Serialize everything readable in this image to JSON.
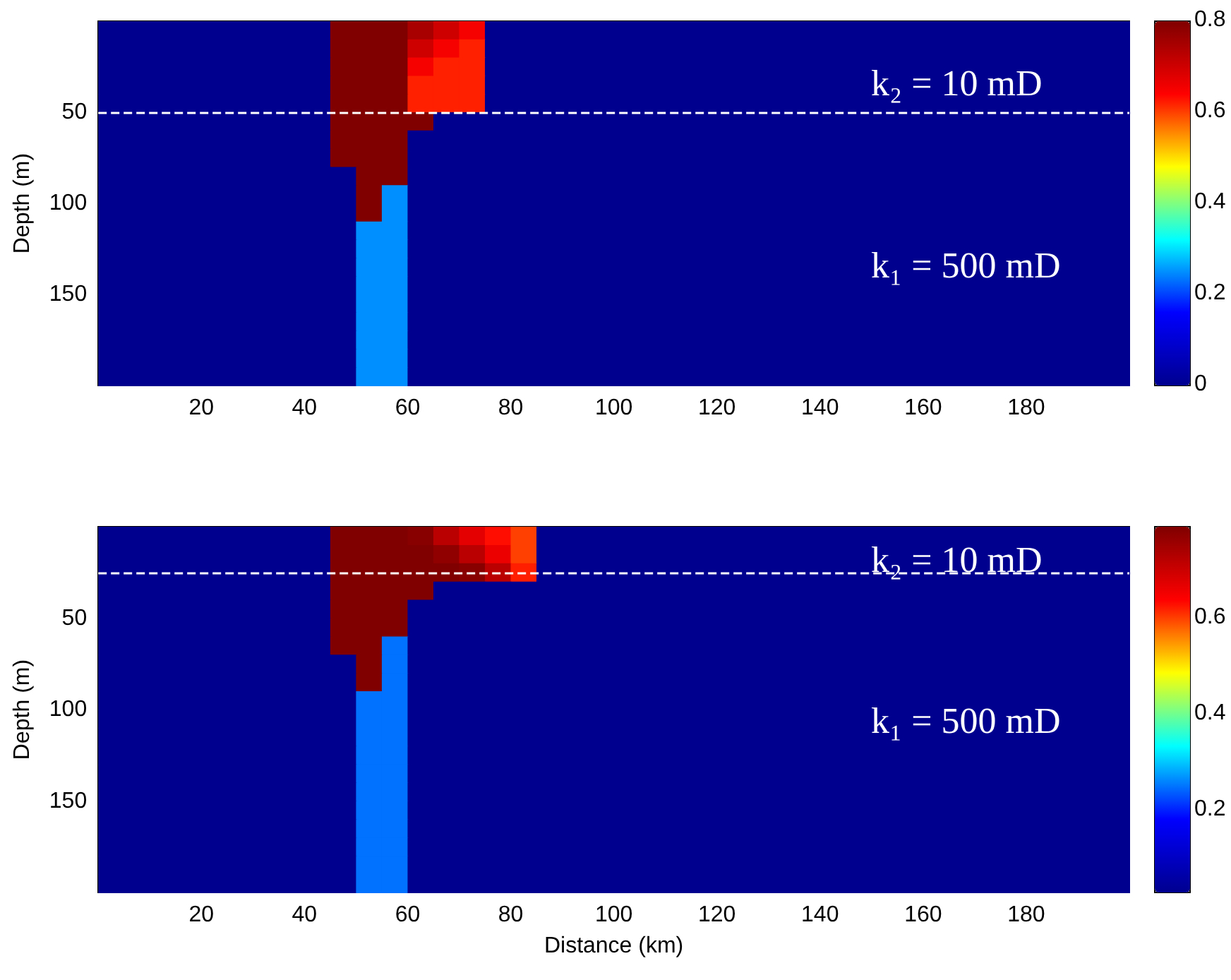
{
  "chart_data": [
    {
      "type": "heatmap",
      "ylabel": "Depth (m)",
      "x": [
        2.5,
        7.5,
        12.5,
        17.5,
        22.5,
        27.5,
        32.5,
        37.5,
        42.5,
        47.5,
        52.5,
        57.5,
        62.5,
        67.5,
        72.5,
        77.5,
        82.5,
        87.5,
        92.5,
        97.5,
        102.5,
        107.5,
        112.5,
        117.5,
        122.5,
        127.5,
        132.5,
        137.5,
        142.5,
        147.5,
        152.5,
        157.5,
        162.5,
        167.5,
        172.5,
        177.5,
        182.5,
        187.5,
        192.5,
        197.5
      ],
      "y": [
        5,
        15,
        25,
        35,
        45,
        55,
        65,
        75,
        85,
        95,
        105,
        115,
        125,
        135,
        145,
        155,
        165,
        175,
        185,
        195
      ],
      "cells": [
        [
          0,
          0,
          0,
          0,
          0,
          0,
          0,
          0,
          0,
          0.8,
          0.8,
          0.8,
          0.75,
          0.7,
          0.65,
          0,
          0,
          0,
          0,
          0,
          0,
          0,
          0,
          0,
          0,
          0,
          0,
          0,
          0,
          0,
          0,
          0,
          0,
          0,
          0,
          0,
          0,
          0,
          0,
          0
        ],
        [
          0,
          0,
          0,
          0,
          0,
          0,
          0,
          0,
          0,
          0.8,
          0.8,
          0.8,
          0.7,
          0.65,
          0.62,
          0,
          0,
          0,
          0,
          0,
          0,
          0,
          0,
          0,
          0,
          0,
          0,
          0,
          0,
          0,
          0,
          0,
          0,
          0,
          0,
          0,
          0,
          0,
          0,
          0
        ],
        [
          0,
          0,
          0,
          0,
          0,
          0,
          0,
          0,
          0,
          0.8,
          0.8,
          0.8,
          0.65,
          0.62,
          0.62,
          0,
          0,
          0,
          0,
          0,
          0,
          0,
          0,
          0,
          0,
          0,
          0,
          0,
          0,
          0,
          0,
          0,
          0,
          0,
          0,
          0,
          0,
          0,
          0,
          0
        ],
        [
          0,
          0,
          0,
          0,
          0,
          0,
          0,
          0,
          0,
          0.8,
          0.8,
          0.8,
          0.62,
          0.62,
          0.62,
          0,
          0,
          0,
          0,
          0,
          0,
          0,
          0,
          0,
          0,
          0,
          0,
          0,
          0,
          0,
          0,
          0,
          0,
          0,
          0,
          0,
          0,
          0,
          0,
          0
        ],
        [
          0,
          0,
          0,
          0,
          0,
          0,
          0,
          0,
          0,
          0.8,
          0.8,
          0.8,
          0.62,
          0.62,
          0.62,
          0,
          0,
          0,
          0,
          0,
          0,
          0,
          0,
          0,
          0,
          0,
          0,
          0,
          0,
          0,
          0,
          0,
          0,
          0,
          0,
          0,
          0,
          0,
          0,
          0
        ],
        [
          0,
          0,
          0,
          0,
          0,
          0,
          0,
          0,
          0,
          0.8,
          0.8,
          0.8,
          0.8,
          0,
          0,
          0,
          0,
          0,
          0,
          0,
          0,
          0,
          0,
          0,
          0,
          0,
          0,
          0,
          0,
          0,
          0,
          0,
          0,
          0,
          0,
          0,
          0,
          0,
          0,
          0
        ],
        [
          0,
          0,
          0,
          0,
          0,
          0,
          0,
          0,
          0,
          0.8,
          0.8,
          0.8,
          0,
          0,
          0,
          0,
          0,
          0,
          0,
          0,
          0,
          0,
          0,
          0,
          0,
          0,
          0,
          0,
          0,
          0,
          0,
          0,
          0,
          0,
          0,
          0,
          0,
          0,
          0,
          0
        ],
        [
          0,
          0,
          0,
          0,
          0,
          0,
          0,
          0,
          0,
          0.8,
          0.8,
          0.8,
          0,
          0,
          0,
          0,
          0,
          0,
          0,
          0,
          0,
          0,
          0,
          0,
          0,
          0,
          0,
          0,
          0,
          0,
          0,
          0,
          0,
          0,
          0,
          0,
          0,
          0,
          0,
          0
        ],
        [
          0,
          0,
          0,
          0,
          0,
          0,
          0,
          0,
          0,
          0,
          0.8,
          0.8,
          0,
          0,
          0,
          0,
          0,
          0,
          0,
          0,
          0,
          0,
          0,
          0,
          0,
          0,
          0,
          0,
          0,
          0,
          0,
          0,
          0,
          0,
          0,
          0,
          0,
          0,
          0,
          0
        ],
        [
          0,
          0,
          0,
          0,
          0,
          0,
          0,
          0,
          0,
          0,
          0.8,
          0.25,
          0,
          0,
          0,
          0,
          0,
          0,
          0,
          0,
          0,
          0,
          0,
          0,
          0,
          0,
          0,
          0,
          0,
          0,
          0,
          0,
          0,
          0,
          0,
          0,
          0,
          0,
          0,
          0
        ],
        [
          0,
          0,
          0,
          0,
          0,
          0,
          0,
          0,
          0,
          0,
          0.8,
          0.25,
          0,
          0,
          0,
          0,
          0,
          0,
          0,
          0,
          0,
          0,
          0,
          0,
          0,
          0,
          0,
          0,
          0,
          0,
          0,
          0,
          0,
          0,
          0,
          0,
          0,
          0,
          0,
          0
        ],
        [
          0,
          0,
          0,
          0,
          0,
          0,
          0,
          0,
          0,
          0,
          0.25,
          0.25,
          0,
          0,
          0,
          0,
          0,
          0,
          0,
          0,
          0,
          0,
          0,
          0,
          0,
          0,
          0,
          0,
          0,
          0,
          0,
          0,
          0,
          0,
          0,
          0,
          0,
          0,
          0,
          0
        ],
        [
          0,
          0,
          0,
          0,
          0,
          0,
          0,
          0,
          0,
          0,
          0.25,
          0.25,
          0,
          0,
          0,
          0,
          0,
          0,
          0,
          0,
          0,
          0,
          0,
          0,
          0,
          0,
          0,
          0,
          0,
          0,
          0,
          0,
          0,
          0,
          0,
          0,
          0,
          0,
          0,
          0
        ],
        [
          0,
          0,
          0,
          0,
          0,
          0,
          0,
          0,
          0,
          0,
          0.25,
          0.25,
          0,
          0,
          0,
          0,
          0,
          0,
          0,
          0,
          0,
          0,
          0,
          0,
          0,
          0,
          0,
          0,
          0,
          0,
          0,
          0,
          0,
          0,
          0,
          0,
          0,
          0,
          0,
          0
        ],
        [
          0,
          0,
          0,
          0,
          0,
          0,
          0,
          0,
          0,
          0,
          0.25,
          0.25,
          0,
          0,
          0,
          0,
          0,
          0,
          0,
          0,
          0,
          0,
          0,
          0,
          0,
          0,
          0,
          0,
          0,
          0,
          0,
          0,
          0,
          0,
          0,
          0,
          0,
          0,
          0,
          0
        ],
        [
          0,
          0,
          0,
          0,
          0,
          0,
          0,
          0,
          0,
          0,
          0.25,
          0.25,
          0,
          0,
          0,
          0,
          0,
          0,
          0,
          0,
          0,
          0,
          0,
          0,
          0,
          0,
          0,
          0,
          0,
          0,
          0,
          0,
          0,
          0,
          0,
          0,
          0,
          0,
          0,
          0
        ],
        [
          0,
          0,
          0,
          0,
          0,
          0,
          0,
          0,
          0,
          0,
          0.25,
          0.25,
          0,
          0,
          0,
          0,
          0,
          0,
          0,
          0,
          0,
          0,
          0,
          0,
          0,
          0,
          0,
          0,
          0,
          0,
          0,
          0,
          0,
          0,
          0,
          0,
          0,
          0,
          0,
          0
        ],
        [
          0,
          0,
          0,
          0,
          0,
          0,
          0,
          0,
          0,
          0,
          0.25,
          0.25,
          0,
          0,
          0,
          0,
          0,
          0,
          0,
          0,
          0,
          0,
          0,
          0,
          0,
          0,
          0,
          0,
          0,
          0,
          0,
          0,
          0,
          0,
          0,
          0,
          0,
          0,
          0,
          0
        ],
        [
          0,
          0,
          0,
          0,
          0,
          0,
          0,
          0,
          0,
          0,
          0.25,
          0.25,
          0,
          0,
          0,
          0,
          0,
          0,
          0,
          0,
          0,
          0,
          0,
          0,
          0,
          0,
          0,
          0,
          0,
          0,
          0,
          0,
          0,
          0,
          0,
          0,
          0,
          0,
          0,
          0
        ],
        [
          0,
          0,
          0,
          0,
          0,
          0,
          0,
          0,
          0,
          0,
          0.25,
          0.25,
          0,
          0,
          0,
          0,
          0,
          0,
          0,
          0,
          0,
          0,
          0,
          0,
          0,
          0,
          0,
          0,
          0,
          0,
          0,
          0,
          0,
          0,
          0,
          0,
          0,
          0,
          0,
          0
        ]
      ],
      "xlim": [
        0,
        200
      ],
      "xticks": [
        20,
        40,
        60,
        80,
        100,
        120,
        140,
        160,
        180
      ],
      "ylim": [
        200,
        0
      ],
      "yticks": [
        50,
        100,
        150
      ],
      "clim": [
        0,
        0.8
      ],
      "cticks": [
        0,
        0.2,
        0.4,
        0.6,
        0.8
      ],
      "ref_lines": [
        {
          "axis": "y",
          "value": 50,
          "color": "#ffffff",
          "line_style": "dashed"
        }
      ],
      "annotations": [
        "k₂ = 10 mD",
        "k₁ = 500 mD"
      ]
    },
    {
      "type": "heatmap",
      "xlabel": "Distance (km)",
      "ylabel": "Depth (m)",
      "x": [
        2.5,
        7.5,
        12.5,
        17.5,
        22.5,
        27.5,
        32.5,
        37.5,
        42.5,
        47.5,
        52.5,
        57.5,
        62.5,
        67.5,
        72.5,
        77.5,
        82.5,
        87.5,
        92.5,
        97.5,
        102.5,
        107.5,
        112.5,
        117.5,
        122.5,
        127.5,
        132.5,
        137.5,
        142.5,
        147.5,
        152.5,
        157.5,
        162.5,
        167.5,
        172.5,
        177.5,
        182.5,
        187.5,
        192.5,
        197.5
      ],
      "y": [
        5,
        15,
        25,
        35,
        45,
        55,
        65,
        75,
        85,
        95,
        105,
        115,
        125,
        135,
        145,
        155,
        165,
        175,
        185,
        195
      ],
      "cells": [
        [
          0.03,
          0.03,
          0.03,
          0.03,
          0.03,
          0.03,
          0.03,
          0.03,
          0.03,
          0.79,
          0.79,
          0.79,
          0.78,
          0.72,
          0.67,
          0.63,
          0.6,
          0.03,
          0.03,
          0.03,
          0.03,
          0.03,
          0.03,
          0.03,
          0.03,
          0.03,
          0.03,
          0.03,
          0.03,
          0.03,
          0.03,
          0.03,
          0.03,
          0.03,
          0.03,
          0.03,
          0.03,
          0.03,
          0.03,
          0.03
        ],
        [
          0.03,
          0.03,
          0.03,
          0.03,
          0.03,
          0.03,
          0.03,
          0.03,
          0.03,
          0.79,
          0.79,
          0.79,
          0.79,
          0.77,
          0.72,
          0.66,
          0.6,
          0.03,
          0.03,
          0.03,
          0.03,
          0.03,
          0.03,
          0.03,
          0.03,
          0.03,
          0.03,
          0.03,
          0.03,
          0.03,
          0.03,
          0.03,
          0.03,
          0.03,
          0.03,
          0.03,
          0.03,
          0.03,
          0.03,
          0.03
        ],
        [
          0.03,
          0.03,
          0.03,
          0.03,
          0.03,
          0.03,
          0.03,
          0.03,
          0.03,
          0.79,
          0.79,
          0.79,
          0.79,
          0.79,
          0.78,
          0.72,
          0.62,
          0.03,
          0.03,
          0.03,
          0.03,
          0.03,
          0.03,
          0.03,
          0.03,
          0.03,
          0.03,
          0.03,
          0.03,
          0.03,
          0.03,
          0.03,
          0.03,
          0.03,
          0.03,
          0.03,
          0.03,
          0.03,
          0.03,
          0.03
        ],
        [
          0.03,
          0.03,
          0.03,
          0.03,
          0.03,
          0.03,
          0.03,
          0.03,
          0.03,
          0.79,
          0.79,
          0.79,
          0.79,
          0.03,
          0.03,
          0.03,
          0.03,
          0.03,
          0.03,
          0.03,
          0.03,
          0.03,
          0.03,
          0.03,
          0.03,
          0.03,
          0.03,
          0.03,
          0.03,
          0.03,
          0.03,
          0.03,
          0.03,
          0.03,
          0.03,
          0.03,
          0.03,
          0.03,
          0.03,
          0.03
        ],
        [
          0.03,
          0.03,
          0.03,
          0.03,
          0.03,
          0.03,
          0.03,
          0.03,
          0.03,
          0.79,
          0.79,
          0.79,
          0.03,
          0.03,
          0.03,
          0.03,
          0.03,
          0.03,
          0.03,
          0.03,
          0.03,
          0.03,
          0.03,
          0.03,
          0.03,
          0.03,
          0.03,
          0.03,
          0.03,
          0.03,
          0.03,
          0.03,
          0.03,
          0.03,
          0.03,
          0.03,
          0.03,
          0.03,
          0.03,
          0.03
        ],
        [
          0.03,
          0.03,
          0.03,
          0.03,
          0.03,
          0.03,
          0.03,
          0.03,
          0.03,
          0.79,
          0.79,
          0.79,
          0.03,
          0.03,
          0.03,
          0.03,
          0.03,
          0.03,
          0.03,
          0.03,
          0.03,
          0.03,
          0.03,
          0.03,
          0.03,
          0.03,
          0.03,
          0.03,
          0.03,
          0.03,
          0.03,
          0.03,
          0.03,
          0.03,
          0.03,
          0.03,
          0.03,
          0.03,
          0.03,
          0.03
        ],
        [
          0.03,
          0.03,
          0.03,
          0.03,
          0.03,
          0.03,
          0.03,
          0.03,
          0.03,
          0.79,
          0.79,
          0.25,
          0.03,
          0.03,
          0.03,
          0.03,
          0.03,
          0.03,
          0.03,
          0.03,
          0.03,
          0.03,
          0.03,
          0.03,
          0.03,
          0.03,
          0.03,
          0.03,
          0.03,
          0.03,
          0.03,
          0.03,
          0.03,
          0.03,
          0.03,
          0.03,
          0.03,
          0.03,
          0.03,
          0.03
        ],
        [
          0.03,
          0.03,
          0.03,
          0.03,
          0.03,
          0.03,
          0.03,
          0.03,
          0.03,
          0.03,
          0.79,
          0.25,
          0.03,
          0.03,
          0.03,
          0.03,
          0.03,
          0.03,
          0.03,
          0.03,
          0.03,
          0.03,
          0.03,
          0.03,
          0.03,
          0.03,
          0.03,
          0.03,
          0.03,
          0.03,
          0.03,
          0.03,
          0.03,
          0.03,
          0.03,
          0.03,
          0.03,
          0.03,
          0.03,
          0.03
        ],
        [
          0.03,
          0.03,
          0.03,
          0.03,
          0.03,
          0.03,
          0.03,
          0.03,
          0.03,
          0.03,
          0.79,
          0.25,
          0.03,
          0.03,
          0.03,
          0.03,
          0.03,
          0.03,
          0.03,
          0.03,
          0.03,
          0.03,
          0.03,
          0.03,
          0.03,
          0.03,
          0.03,
          0.03,
          0.03,
          0.03,
          0.03,
          0.03,
          0.03,
          0.03,
          0.03,
          0.03,
          0.03,
          0.03,
          0.03,
          0.03
        ],
        [
          0.03,
          0.03,
          0.03,
          0.03,
          0.03,
          0.03,
          0.03,
          0.03,
          0.03,
          0.03,
          0.25,
          0.25,
          0.03,
          0.03,
          0.03,
          0.03,
          0.03,
          0.03,
          0.03,
          0.03,
          0.03,
          0.03,
          0.03,
          0.03,
          0.03,
          0.03,
          0.03,
          0.03,
          0.03,
          0.03,
          0.03,
          0.03,
          0.03,
          0.03,
          0.03,
          0.03,
          0.03,
          0.03,
          0.03,
          0.03
        ],
        [
          0.03,
          0.03,
          0.03,
          0.03,
          0.03,
          0.03,
          0.03,
          0.03,
          0.03,
          0.03,
          0.25,
          0.25,
          0.03,
          0.03,
          0.03,
          0.03,
          0.03,
          0.03,
          0.03,
          0.03,
          0.03,
          0.03,
          0.03,
          0.03,
          0.03,
          0.03,
          0.03,
          0.03,
          0.03,
          0.03,
          0.03,
          0.03,
          0.03,
          0.03,
          0.03,
          0.03,
          0.03,
          0.03,
          0.03,
          0.03
        ],
        [
          0.03,
          0.03,
          0.03,
          0.03,
          0.03,
          0.03,
          0.03,
          0.03,
          0.03,
          0.03,
          0.25,
          0.25,
          0.03,
          0.03,
          0.03,
          0.03,
          0.03,
          0.03,
          0.03,
          0.03,
          0.03,
          0.03,
          0.03,
          0.03,
          0.03,
          0.03,
          0.03,
          0.03,
          0.03,
          0.03,
          0.03,
          0.03,
          0.03,
          0.03,
          0.03,
          0.03,
          0.03,
          0.03,
          0.03,
          0.03
        ],
        [
          0.03,
          0.03,
          0.03,
          0.03,
          0.03,
          0.03,
          0.03,
          0.03,
          0.03,
          0.03,
          0.25,
          0.25,
          0.03,
          0.03,
          0.03,
          0.03,
          0.03,
          0.03,
          0.03,
          0.03,
          0.03,
          0.03,
          0.03,
          0.03,
          0.03,
          0.03,
          0.03,
          0.03,
          0.03,
          0.03,
          0.03,
          0.03,
          0.03,
          0.03,
          0.03,
          0.03,
          0.03,
          0.03,
          0.03,
          0.03
        ],
        [
          0.03,
          0.03,
          0.03,
          0.03,
          0.03,
          0.03,
          0.03,
          0.03,
          0.03,
          0.03,
          0.25,
          0.25,
          0.03,
          0.03,
          0.03,
          0.03,
          0.03,
          0.03,
          0.03,
          0.03,
          0.03,
          0.03,
          0.03,
          0.03,
          0.03,
          0.03,
          0.03,
          0.03,
          0.03,
          0.03,
          0.03,
          0.03,
          0.03,
          0.03,
          0.03,
          0.03,
          0.03,
          0.03,
          0.03,
          0.03
        ],
        [
          0.03,
          0.03,
          0.03,
          0.03,
          0.03,
          0.03,
          0.03,
          0.03,
          0.03,
          0.03,
          0.25,
          0.25,
          0.03,
          0.03,
          0.03,
          0.03,
          0.03,
          0.03,
          0.03,
          0.03,
          0.03,
          0.03,
          0.03,
          0.03,
          0.03,
          0.03,
          0.03,
          0.03,
          0.03,
          0.03,
          0.03,
          0.03,
          0.03,
          0.03,
          0.03,
          0.03,
          0.03,
          0.03,
          0.03,
          0.03
        ],
        [
          0.03,
          0.03,
          0.03,
          0.03,
          0.03,
          0.03,
          0.03,
          0.03,
          0.03,
          0.03,
          0.25,
          0.25,
          0.03,
          0.03,
          0.03,
          0.03,
          0.03,
          0.03,
          0.03,
          0.03,
          0.03,
          0.03,
          0.03,
          0.03,
          0.03,
          0.03,
          0.03,
          0.03,
          0.03,
          0.03,
          0.03,
          0.03,
          0.03,
          0.03,
          0.03,
          0.03,
          0.03,
          0.03,
          0.03,
          0.03
        ],
        [
          0.03,
          0.03,
          0.03,
          0.03,
          0.03,
          0.03,
          0.03,
          0.03,
          0.03,
          0.03,
          0.25,
          0.25,
          0.03,
          0.03,
          0.03,
          0.03,
          0.03,
          0.03,
          0.03,
          0.03,
          0.03,
          0.03,
          0.03,
          0.03,
          0.03,
          0.03,
          0.03,
          0.03,
          0.03,
          0.03,
          0.03,
          0.03,
          0.03,
          0.03,
          0.03,
          0.03,
          0.03,
          0.03,
          0.03,
          0.03
        ],
        [
          0.03,
          0.03,
          0.03,
          0.03,
          0.03,
          0.03,
          0.03,
          0.03,
          0.03,
          0.03,
          0.25,
          0.25,
          0.03,
          0.03,
          0.03,
          0.03,
          0.03,
          0.03,
          0.03,
          0.03,
          0.03,
          0.03,
          0.03,
          0.03,
          0.03,
          0.03,
          0.03,
          0.03,
          0.03,
          0.03,
          0.03,
          0.03,
          0.03,
          0.03,
          0.03,
          0.03,
          0.03,
          0.03,
          0.03,
          0.03
        ],
        [
          0.03,
          0.03,
          0.03,
          0.03,
          0.03,
          0.03,
          0.03,
          0.03,
          0.03,
          0.03,
          0.25,
          0.25,
          0.03,
          0.03,
          0.03,
          0.03,
          0.03,
          0.03,
          0.03,
          0.03,
          0.03,
          0.03,
          0.03,
          0.03,
          0.03,
          0.03,
          0.03,
          0.03,
          0.03,
          0.03,
          0.03,
          0.03,
          0.03,
          0.03,
          0.03,
          0.03,
          0.03,
          0.03,
          0.03,
          0.03
        ],
        [
          0.03,
          0.03,
          0.03,
          0.03,
          0.03,
          0.03,
          0.03,
          0.03,
          0.03,
          0.03,
          0.25,
          0.25,
          0.03,
          0.03,
          0.03,
          0.03,
          0.03,
          0.03,
          0.03,
          0.03,
          0.03,
          0.03,
          0.03,
          0.03,
          0.03,
          0.03,
          0.03,
          0.03,
          0.03,
          0.03,
          0.03,
          0.03,
          0.03,
          0.03,
          0.03,
          0.03,
          0.03,
          0.03,
          0.03,
          0.03
        ]
      ],
      "xlim": [
        0,
        200
      ],
      "xticks": [
        20,
        40,
        60,
        80,
        100,
        120,
        140,
        160,
        180
      ],
      "ylim": [
        200,
        0
      ],
      "yticks": [
        50,
        100,
        150
      ],
      "clim": [
        0.03,
        0.79
      ],
      "cticks": [
        0.2,
        0.4,
        0.6
      ],
      "ref_lines": [
        {
          "axis": "y",
          "value": 25,
          "color": "#ffffff",
          "line_style": "dashed"
        }
      ],
      "annotations": [
        "k₂ = 10 mD",
        "k₁ = 500 mD"
      ]
    }
  ]
}
